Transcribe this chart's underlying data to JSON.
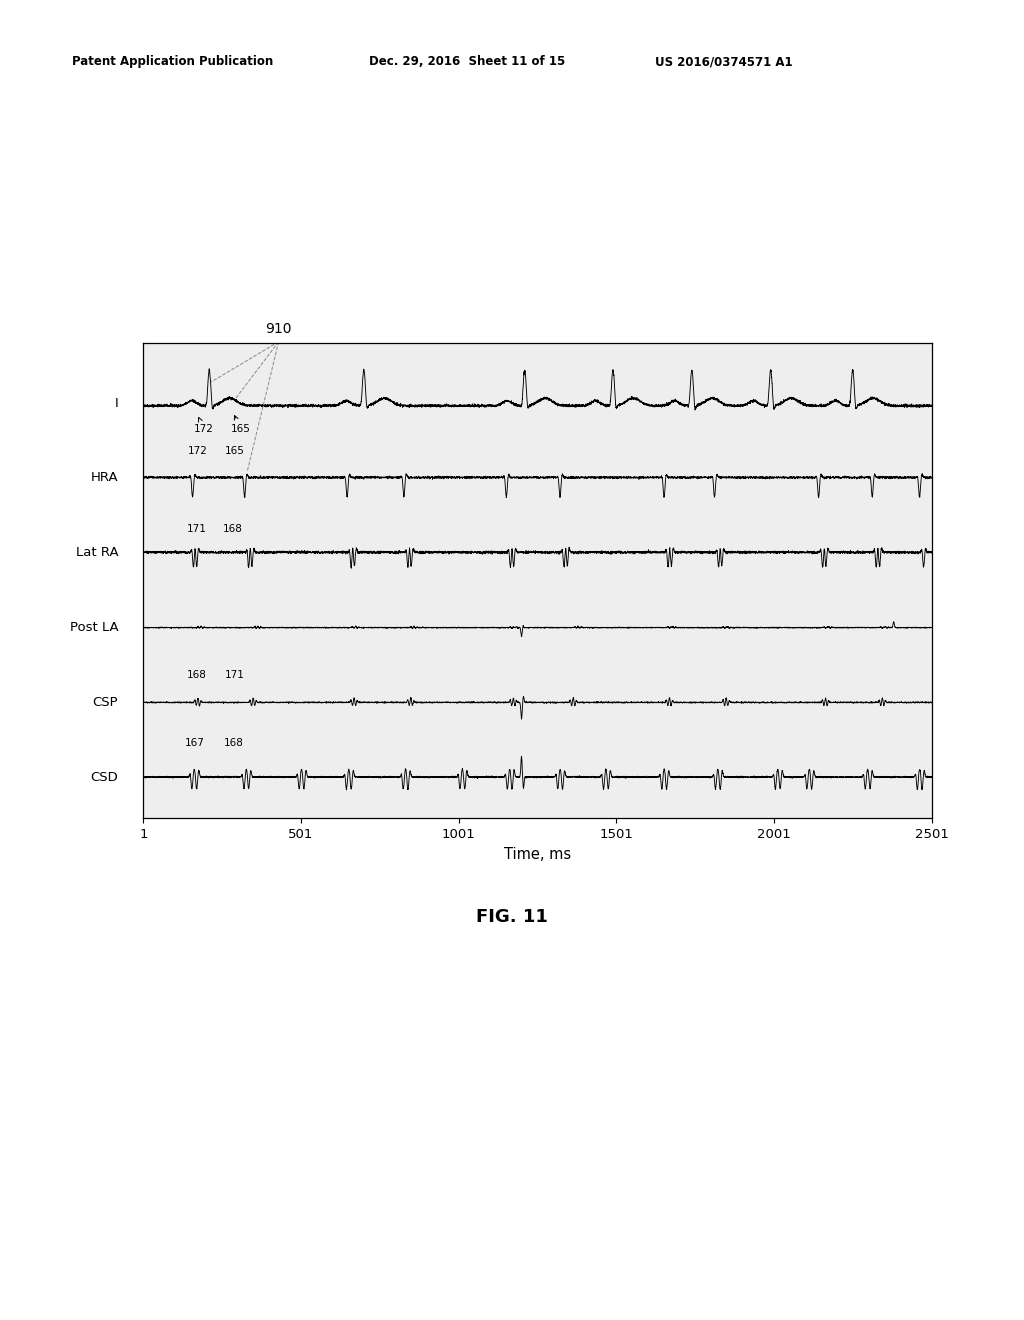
{
  "title": "910",
  "fig_label": "FIG. 11",
  "xlabel": "Time, ms",
  "x_ticks": [
    1,
    501,
    1001,
    1501,
    2001,
    2501
  ],
  "x_min": 1,
  "x_max": 2501,
  "channel_labels": [
    "I",
    "HRA",
    "Lat RA",
    "Post LA",
    "CSP",
    "CSD"
  ],
  "header_left": "Patent Application Publication",
  "header_mid": "Dec. 29, 2016  Sheet 11 of 15",
  "header_right": "US 2016/0374571 A1",
  "background_color": "#ffffff",
  "plot_bg": "#eeeeee",
  "signal_color": "#000000"
}
